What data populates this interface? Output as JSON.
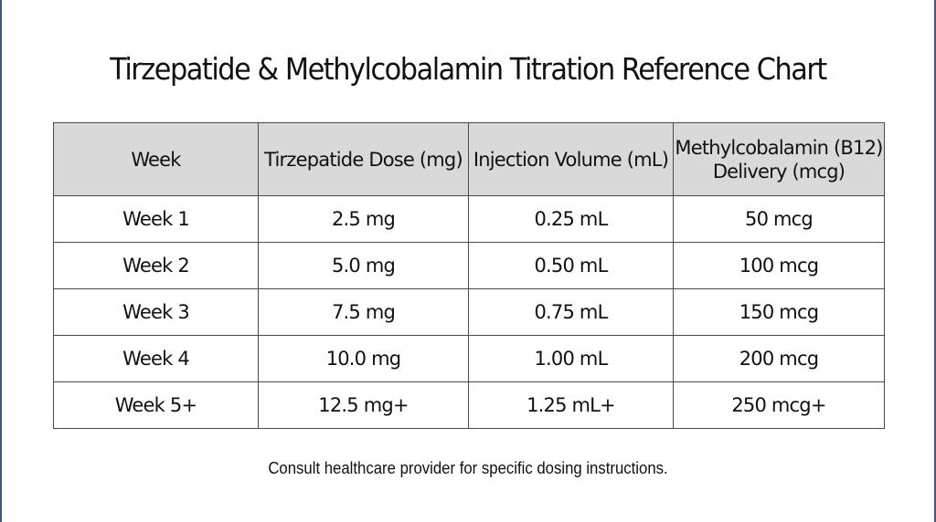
{
  "title": "Tirzepatide & Methylcobalamin Titration Reference Chart",
  "table": {
    "headers": [
      {
        "lines": [
          "Week"
        ]
      },
      {
        "lines": [
          "Tirzepatide Dose (mg)"
        ]
      },
      {
        "lines": [
          "Injection Volume (mL)"
        ]
      },
      {
        "lines": [
          "Methylcobalamin (B12)",
          "Delivery (mcg)"
        ]
      }
    ],
    "rows": [
      [
        "Week 1",
        "2.5 mg",
        "0.25 mL",
        "50 mcg"
      ],
      [
        "Week 2",
        "5.0 mg",
        "0.50 mL",
        "100 mcg"
      ],
      [
        "Week 3",
        "7.5 mg",
        "0.75 mL",
        "150 mcg"
      ],
      [
        "Week 4",
        "10.0 mg",
        "1.00 mL",
        "200 mcg"
      ],
      [
        "Week 5+",
        "12.5 mg+",
        "1.25 mL+",
        "250 mcg+"
      ]
    ]
  },
  "footnote": "Consult healthcare provider for specific dosing instructions.",
  "colors": {
    "header_bg": "#d9d9d9",
    "border": "#4a4a4a",
    "edge_accent": "#3d5a87"
  }
}
